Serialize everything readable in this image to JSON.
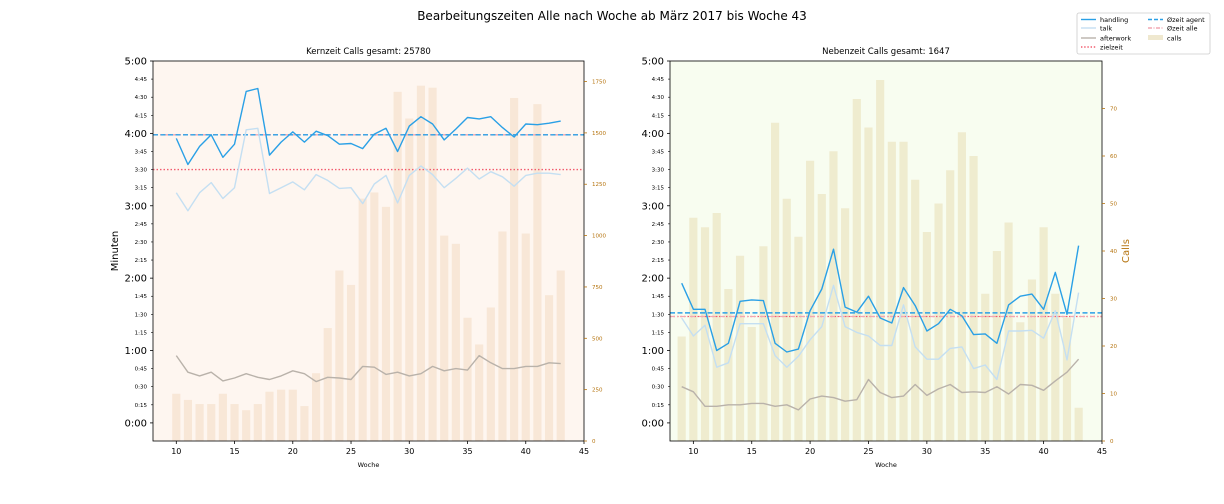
{
  "figure": {
    "title": "Bearbeitungszeiten Alle nach Woche ab März 2017 bis Woche 43"
  },
  "legend": {
    "placement": "top-right",
    "entries": [
      {
        "key": "handling",
        "label": "handling",
        "style": "solid",
        "color": "#2aa0e6"
      },
      {
        "key": "talk",
        "label": "talk",
        "style": "solid",
        "color": "#c4dff2"
      },
      {
        "key": "afterwork",
        "label": "afterwork",
        "style": "solid",
        "color": "#b9b2aa"
      },
      {
        "key": "zielzeit",
        "label": "zielzeit",
        "style": "dotted",
        "color": "#f25c6e"
      },
      {
        "key": "agent",
        "label": "Øzeit agent",
        "style": "dashed",
        "color": "#2aa0e6"
      },
      {
        "key": "alle",
        "label": "Øzeit alle",
        "style": "dashdot",
        "color": "#f2a7b2"
      },
      {
        "key": "calls",
        "label": "calls",
        "style": "bar",
        "color": "#efe8cf"
      }
    ]
  },
  "colors": {
    "handling": "#2aa0e6",
    "talk": "#c4dff2",
    "afterwork": "#b9b2aa",
    "zielzeit": "#f25c6e",
    "orange_axis": "#b5730e"
  },
  "chart_data": [
    {
      "type": "line",
      "title": "Kernzeit Calls gesamt: 25780",
      "xlabel": "Woche",
      "ylabel": "Minuten",
      "y2label": "",
      "xlim": [
        8,
        45
      ],
      "ylim_minutes": [
        -0.25,
        5
      ],
      "y2lim": [
        0,
        1850
      ],
      "bg_color": "#fef6f0",
      "bar_color": "#f8e7d7",
      "x_ticks": [
        10,
        15,
        20,
        25,
        30,
        35,
        40,
        45
      ],
      "y_major_ticks": [
        "0:00",
        "1:00",
        "2:00",
        "3:00",
        "4:00",
        "5:00"
      ],
      "y_minor_ticks": [
        "0:15",
        "0:30",
        "0:45",
        "1:15",
        "1:30",
        "1:45",
        "2:15",
        "2:30",
        "2:45",
        "3:15",
        "3:30",
        "3:45",
        "4:15",
        "4:30",
        "4:45"
      ],
      "y2_ticks": [
        0,
        250,
        500,
        750,
        1000,
        1250,
        1500,
        1750
      ],
      "x": [
        10,
        11,
        12,
        13,
        14,
        15,
        16,
        17,
        18,
        19,
        20,
        21,
        22,
        23,
        24,
        25,
        26,
        27,
        28,
        29,
        30,
        31,
        32,
        33,
        34,
        35,
        36,
        37,
        38,
        39,
        40,
        41,
        42,
        43
      ],
      "calls": [
        230,
        200,
        180,
        180,
        230,
        180,
        150,
        180,
        240,
        250,
        250,
        170,
        330,
        550,
        830,
        760,
        1180,
        1210,
        1140,
        1700,
        1570,
        1730,
        1720,
        1000,
        960,
        600,
        470,
        650,
        1020,
        1670,
        1010,
        1640,
        710,
        830
      ],
      "handling": [
        3.93,
        3.57,
        3.82,
        3.98,
        3.67,
        3.85,
        4.58,
        4.62,
        3.7,
        3.88,
        4.02,
        3.88,
        4.03,
        3.97,
        3.85,
        3.86,
        3.79,
        3.99,
        4.07,
        3.75,
        4.1,
        4.23,
        4.13,
        3.91,
        4.06,
        4.22,
        4.2,
        4.23,
        4.08,
        3.95,
        4.13,
        4.12,
        4.14,
        4.17
      ],
      "talk": [
        3.18,
        2.93,
        3.18,
        3.32,
        3.1,
        3.25,
        4.05,
        4.07,
        3.17,
        3.25,
        3.33,
        3.22,
        3.43,
        3.35,
        3.24,
        3.25,
        3.03,
        3.3,
        3.42,
        3.04,
        3.42,
        3.55,
        3.43,
        3.25,
        3.38,
        3.52,
        3.37,
        3.47,
        3.4,
        3.27,
        3.42,
        3.45,
        3.45,
        3.43
      ],
      "afterwork": [
        0.93,
        0.7,
        0.65,
        0.7,
        0.58,
        0.62,
        0.68,
        0.63,
        0.6,
        0.65,
        0.72,
        0.68,
        0.57,
        0.63,
        0.62,
        0.6,
        0.78,
        0.77,
        0.67,
        0.7,
        0.65,
        0.68,
        0.78,
        0.72,
        0.75,
        0.73,
        0.93,
        0.83,
        0.75,
        0.75,
        0.78,
        0.78,
        0.83,
        0.82
      ],
      "oezeit_agent": 3.98,
      "oezeit_alle": 3.98,
      "zielzeit": 3.5
    },
    {
      "type": "line",
      "title": "Nebenzeit Calls gesamt: 1647",
      "xlabel": "Woche",
      "ylabel": "",
      "y2label": "Calls",
      "xlim": [
        8,
        45
      ],
      "ylim_minutes": [
        -0.25,
        5
      ],
      "y2lim": [
        0,
        80
      ],
      "bg_color": "#f8fdf0",
      "bar_color": "#efeccf",
      "x_ticks": [
        10,
        15,
        20,
        25,
        30,
        35,
        40,
        45
      ],
      "y_major_ticks": [
        "0:00",
        "1:00",
        "2:00",
        "3:00",
        "4:00",
        "5:00"
      ],
      "y_minor_ticks": [
        "0:15",
        "0:30",
        "0:45",
        "1:15",
        "1:30",
        "1:45",
        "2:15",
        "2:30",
        "2:45",
        "3:15",
        "3:30",
        "3:45",
        "4:15",
        "4:30",
        "4:45"
      ],
      "y2_ticks": [
        0,
        10,
        20,
        30,
        40,
        50,
        60,
        70
      ],
      "x": [
        9,
        10,
        11,
        12,
        13,
        14,
        15,
        16,
        17,
        18,
        19,
        20,
        21,
        22,
        23,
        24,
        25,
        26,
        27,
        28,
        29,
        30,
        31,
        32,
        33,
        34,
        35,
        36,
        37,
        38,
        39,
        40,
        41,
        42,
        43
      ],
      "calls": [
        22,
        47,
        45,
        48,
        32,
        39,
        24,
        41,
        67,
        51,
        43,
        59,
        52,
        61,
        49,
        72,
        66,
        76,
        63,
        63,
        55,
        44,
        50,
        57,
        65,
        60,
        31,
        40,
        46,
        25,
        34,
        45,
        31,
        26,
        7
      ],
      "handling": [
        1.93,
        1.57,
        1.57,
        1.0,
        1.1,
        1.68,
        1.7,
        1.69,
        1.1,
        0.98,
        1.02,
        1.55,
        1.85,
        2.4,
        1.6,
        1.53,
        1.75,
        1.45,
        1.38,
        1.87,
        1.62,
        1.27,
        1.37,
        1.57,
        1.48,
        1.22,
        1.23,
        1.1,
        1.63,
        1.75,
        1.78,
        1.57,
        2.08,
        1.5,
        2.45
      ],
      "talk": [
        1.45,
        1.2,
        1.35,
        0.77,
        0.83,
        1.37,
        1.37,
        1.37,
        0.93,
        0.77,
        0.92,
        1.15,
        1.33,
        1.9,
        1.33,
        1.25,
        1.2,
        1.07,
        1.07,
        1.63,
        1.05,
        0.88,
        0.88,
        1.03,
        1.05,
        0.75,
        0.8,
        0.6,
        1.27,
        1.27,
        1.28,
        1.17,
        1.55,
        0.87,
        1.8
      ],
      "afterwork": [
        0.5,
        0.43,
        0.23,
        0.23,
        0.25,
        0.25,
        0.27,
        0.27,
        0.23,
        0.25,
        0.18,
        0.33,
        0.37,
        0.35,
        0.3,
        0.32,
        0.6,
        0.42,
        0.35,
        0.37,
        0.53,
        0.38,
        0.47,
        0.53,
        0.42,
        0.43,
        0.42,
        0.5,
        0.4,
        0.53,
        0.52,
        0.45,
        0.58,
        0.7,
        0.88
      ],
      "oezeit_agent": 1.52,
      "oezeit_alle": 1.47,
      "zielzeit": 1.47
    }
  ]
}
